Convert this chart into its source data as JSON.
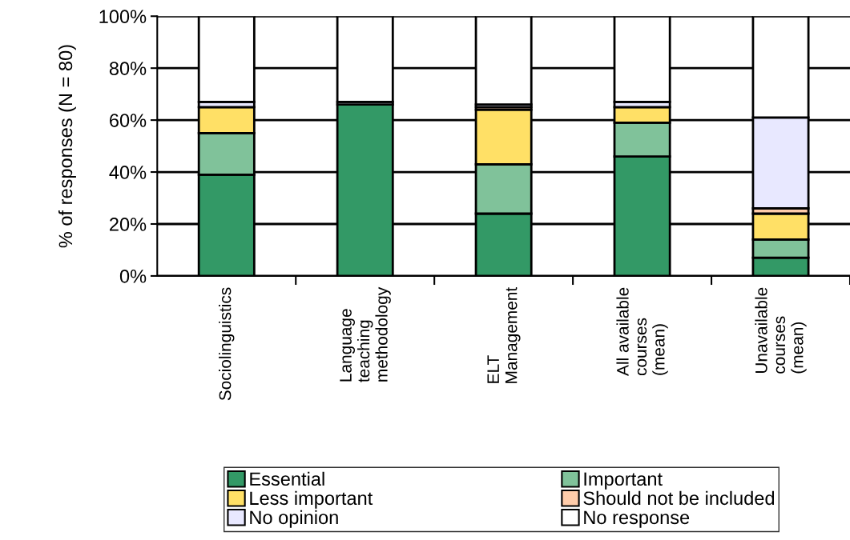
{
  "chart_data": {
    "type": "bar",
    "stacked": true,
    "ylabel": "% of responses (N = 80)",
    "categories": [
      "Sociolinguistics",
      "Language\nteaching\nmethodology",
      "ELT\nManagement",
      "All available\ncourses\n(mean)",
      "Unavailable\ncourses\n(mean)"
    ],
    "series": [
      {
        "name": "Essential",
        "color": "#339966",
        "values": [
          39,
          66,
          24,
          46,
          7
        ]
      },
      {
        "name": "Important",
        "color": "#80c29a",
        "values": [
          16,
          0,
          19,
          13,
          7
        ]
      },
      {
        "name": "Less important",
        "color": "#ffe066",
        "values": [
          10,
          0,
          21,
          6,
          10
        ]
      },
      {
        "name": "Should not be included",
        "color": "#ffccaa",
        "values": [
          0,
          0,
          1,
          null,
          2
        ]
      },
      {
        "name": "No opinion",
        "color": "#e8e8ff",
        "values": [
          2,
          1,
          1,
          2,
          35
        ]
      },
      {
        "name": "No response",
        "color": "#ffffff",
        "values": [
          33,
          33,
          34,
          33,
          39
        ]
      }
    ],
    "ylim": [
      0,
      100
    ],
    "yticks": [
      {
        "value": 0,
        "label": "0%"
      },
      {
        "value": 20,
        "label": "20%"
      },
      {
        "value": 40,
        "label": "40%"
      },
      {
        "value": 60,
        "label": "60%"
      },
      {
        "value": 80,
        "label": "80%"
      },
      {
        "value": 100,
        "label": "100%"
      }
    ],
    "grid": "y",
    "legend": "bottom"
  }
}
